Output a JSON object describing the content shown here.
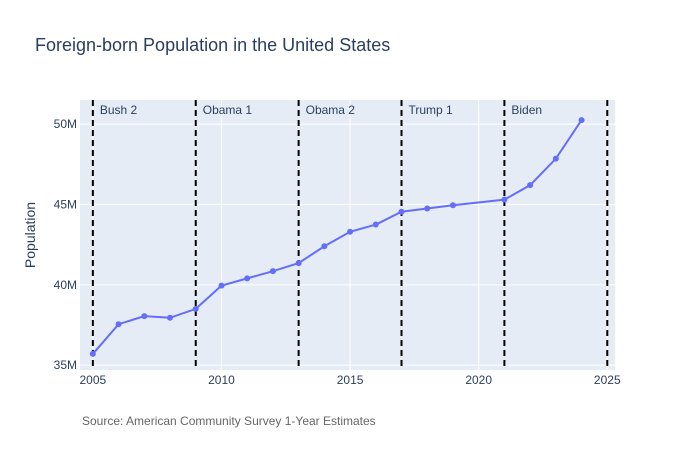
{
  "chart_data": {
    "type": "line",
    "title": "Foreign-born Population in the United States",
    "ylabel": "Population",
    "xlabel": "",
    "source": "Source: American Community Survey 1-Year Estimates",
    "xlim": [
      2004.5,
      2025.3
    ],
    "ylim": [
      34700000,
      51500000
    ],
    "x_ticks": [
      2005,
      2010,
      2015,
      2020,
      2025
    ],
    "y_ticks": [
      {
        "value": 35000000,
        "label": "35M"
      },
      {
        "value": 40000000,
        "label": "40M"
      },
      {
        "value": 45000000,
        "label": "45M"
      },
      {
        "value": 50000000,
        "label": "50M"
      }
    ],
    "grid": true,
    "series": [
      {
        "x": [
          2005,
          2006,
          2007,
          2008,
          2009,
          2010,
          2011,
          2012,
          2013,
          2014,
          2015,
          2016,
          2017,
          2018,
          2019,
          2021,
          2022,
          2023,
          2024
        ],
        "y": [
          35700000,
          37550000,
          38050000,
          37950000,
          38500000,
          39950000,
          40400000,
          40850000,
          41350000,
          42400000,
          43300000,
          43750000,
          44550000,
          44750000,
          44950000,
          45300000,
          46200000,
          47850000,
          50250000
        ]
      }
    ],
    "vlines": [
      {
        "x": 2005,
        "label": "Bush 2"
      },
      {
        "x": 2009,
        "label": "Obama 1"
      },
      {
        "x": 2013,
        "label": "Obama 2"
      },
      {
        "x": 2017,
        "label": "Trump 1"
      },
      {
        "x": 2021,
        "label": "Biden"
      },
      {
        "x": 2025,
        "label": ""
      }
    ],
    "colors": {
      "line": "#636efa",
      "plot_bg": "#e5ecf6",
      "grid": "#ffffff",
      "vline": "#000000",
      "text": "#2a3f5f"
    }
  }
}
